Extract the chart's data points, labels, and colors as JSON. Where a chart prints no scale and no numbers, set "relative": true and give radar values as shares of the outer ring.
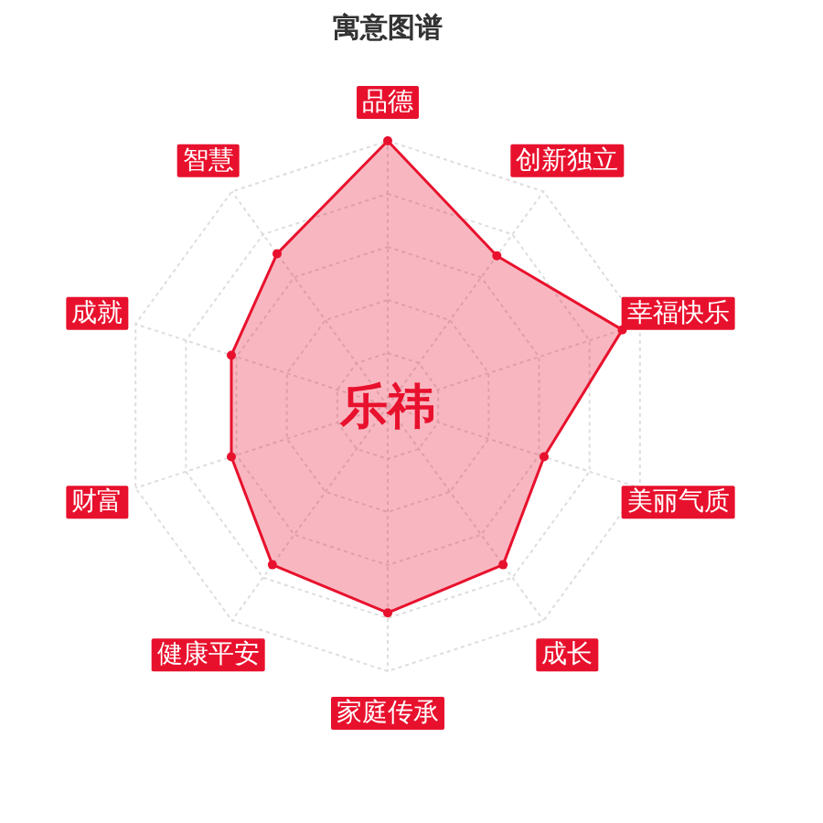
{
  "chart_data": {
    "type": "radar",
    "title": "寓意图谱",
    "annotations": [
      "乐祎"
    ],
    "categories": [
      "品德",
      "创新独立",
      "幸福快乐",
      "美丽气质",
      "成长",
      "家庭传承",
      "健康平安",
      "财富",
      "成就",
      "智慧"
    ],
    "relative": true,
    "grid": true,
    "marker": "circle",
    "series": [
      {
        "color": "#e8112d",
        "values": [
          1.0,
          0.7,
          0.93,
          0.62,
          0.74,
          0.78,
          0.74,
          0.62,
          0.62,
          0.71
        ]
      }
    ]
  }
}
